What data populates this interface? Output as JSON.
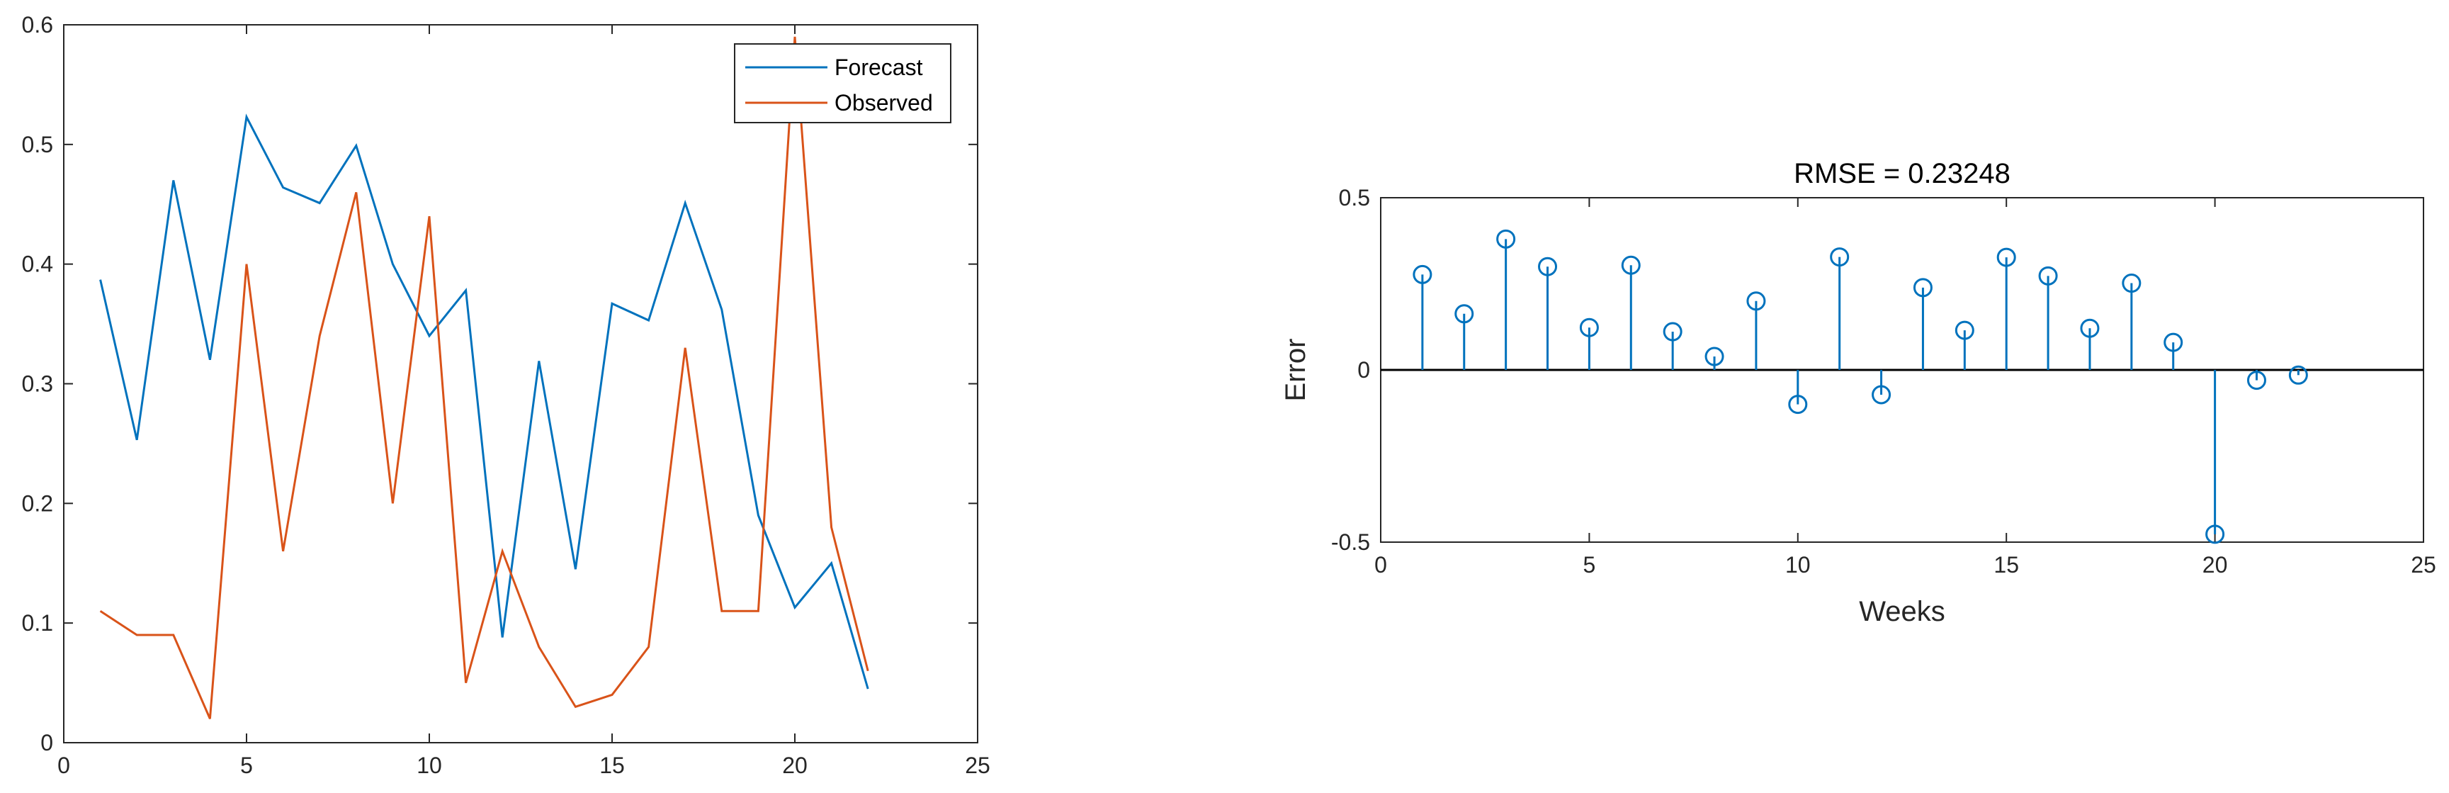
{
  "chart_data": [
    {
      "type": "line",
      "title": "",
      "xlabel": "",
      "ylabel": "",
      "xlim": [
        0,
        25
      ],
      "ylim": [
        0,
        0.6
      ],
      "xticks": [
        0,
        5,
        10,
        15,
        20,
        25
      ],
      "yticks": [
        0,
        0.1,
        0.2,
        0.3,
        0.4,
        0.5,
        0.6
      ],
      "xtick_labels": [
        "0",
        "5",
        "10",
        "15",
        "20",
        "25"
      ],
      "ytick_labels": [
        "0",
        "0.1",
        "0.2",
        "0.3",
        "0.4",
        "0.5",
        "0.6"
      ],
      "grid": false,
      "legend_position": "top-right",
      "x": [
        1,
        2,
        3,
        4,
        5,
        6,
        7,
        8,
        9,
        10,
        11,
        12,
        13,
        14,
        15,
        16,
        17,
        18,
        19,
        20,
        21,
        22
      ],
      "series": [
        {
          "name": "Forecast",
          "color": "#0072BD",
          "values": [
            0.387,
            0.253,
            0.47,
            0.32,
            0.523,
            0.464,
            0.451,
            0.499,
            0.4,
            0.34,
            0.378,
            0.088,
            0.319,
            0.145,
            0.367,
            0.353,
            0.451,
            0.362,
            0.19,
            0.113,
            0.15,
            0.045
          ]
        },
        {
          "name": "Observed",
          "color": "#D95319",
          "values": [
            0.11,
            0.09,
            0.09,
            0.02,
            0.4,
            0.16,
            0.34,
            0.46,
            0.2,
            0.44,
            0.05,
            0.16,
            0.08,
            0.03,
            0.04,
            0.08,
            0.33,
            0.11,
            0.11,
            0.59,
            0.18,
            0.06
          ]
        }
      ]
    },
    {
      "type": "stem",
      "title": "RMSE = 0.23248",
      "xlabel": "Weeks",
      "ylabel": "Error",
      "xlim": [
        0,
        25
      ],
      "ylim": [
        -0.5,
        0.5
      ],
      "xticks": [
        0,
        5,
        10,
        15,
        20,
        25
      ],
      "yticks": [
        -0.5,
        0,
        0.5
      ],
      "xtick_labels": [
        "0",
        "5",
        "10",
        "15",
        "20",
        "25"
      ],
      "ytick_labels": [
        "-0.5",
        "0",
        "0.5"
      ],
      "grid": false,
      "baseline": 0,
      "color": "#0072BD",
      "x": [
        1,
        2,
        3,
        4,
        5,
        6,
        7,
        8,
        9,
        10,
        11,
        12,
        13,
        14,
        15,
        16,
        17,
        18,
        19,
        20,
        21,
        22
      ],
      "values": [
        0.277,
        0.163,
        0.38,
        0.3,
        0.123,
        0.304,
        0.111,
        0.039,
        0.2,
        -0.1,
        0.328,
        -0.072,
        0.239,
        0.115,
        0.327,
        0.273,
        0.121,
        0.252,
        0.08,
        -0.477,
        -0.03,
        -0.015
      ]
    }
  ]
}
